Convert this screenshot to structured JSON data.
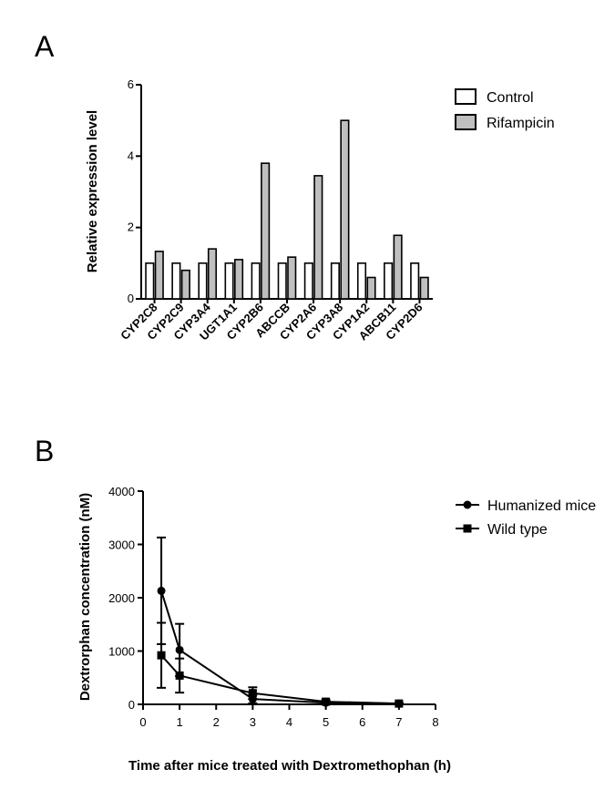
{
  "panels": {
    "a_label": "A",
    "b_label": "B"
  },
  "chart_data": [
    {
      "type": "bar",
      "categories": [
        "CYP2C8",
        "CYP2C9",
        "CYP3A4",
        "UGT1A1",
        "CYP2B6",
        "ABCCB",
        "CYP2A6",
        "CYP3A8",
        "CYP1A2",
        "ABCB11",
        "CYP2D6"
      ],
      "series": [
        {
          "name": "Control",
          "color": "#ffffff",
          "values": [
            1,
            1,
            1,
            1,
            1,
            1,
            1,
            1,
            1,
            1,
            1
          ]
        },
        {
          "name": "Rifampicin",
          "color": "#bfbfbf",
          "values": [
            1.33,
            0.8,
            1.4,
            1.1,
            3.8,
            1.17,
            3.45,
            5.0,
            0.6,
            1.78,
            0.6
          ]
        }
      ],
      "title": "",
      "xlabel": "",
      "ylabel": "Relative expression level",
      "ylim": [
        0,
        6
      ],
      "yticks": [
        0,
        2,
        4,
        6
      ],
      "grid": false,
      "legend": "top-right"
    },
    {
      "type": "line",
      "series": [
        {
          "name": "Humanized mice",
          "marker": "circle",
          "x": [
            0.5,
            1,
            3,
            5,
            7
          ],
          "y": [
            2130,
            1020,
            100,
            30,
            15
          ],
          "err": [
            1000,
            490,
            80,
            20,
            10
          ]
        },
        {
          "name": "Wild type",
          "marker": "square",
          "x": [
            0.5,
            1,
            3,
            5,
            7
          ],
          "y": [
            920,
            540,
            210,
            50,
            15
          ],
          "err": [
            610,
            320,
            110,
            30,
            10
          ]
        }
      ],
      "title": "",
      "xlabel": "Time after mice treated with Dextromethophan (h)",
      "ylabel": "Dextrorphan concentration (nM)",
      "xlim": [
        0,
        8
      ],
      "ylim": [
        0,
        4000
      ],
      "xticks": [
        0,
        1,
        2,
        3,
        4,
        5,
        6,
        7,
        8
      ],
      "yticks": [
        0,
        1000,
        2000,
        3000,
        4000
      ],
      "grid": false,
      "legend": "top-right"
    }
  ]
}
